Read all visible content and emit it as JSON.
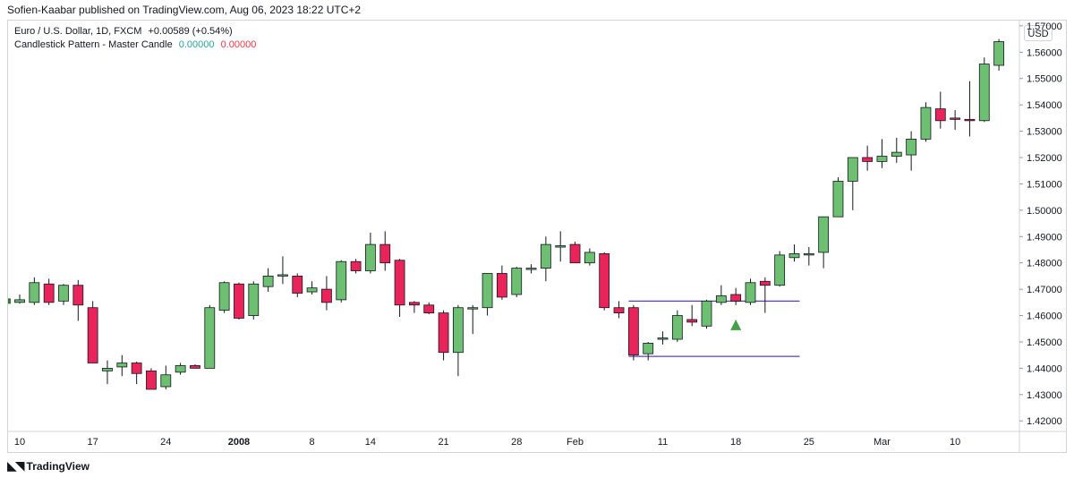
{
  "header": {
    "publisher": "Sofien-Kaabar published on TradingView.com, Aug 06, 2023 18:22 UTC+2",
    "symbol_line": "Euro / U.S. Dollar, 1D, FXCM",
    "change": "+0.00589 (+0.54%)",
    "indicator_name": "Candlestick Pattern - Master Candle",
    "indicator_value_1": "0.00000",
    "indicator_value_2": "0.00000",
    "currency": "USD"
  },
  "footer": {
    "brand": "TradingView",
    "brand_icon": "tradingview-logo-icon"
  },
  "colors": {
    "up": "#6dbf72",
    "down": "#e8245a",
    "wick": "#131722",
    "pattern_lines": "#5b3fc4",
    "signal": "#43a047",
    "grid": "#ffffff"
  },
  "chart_data": {
    "type": "candlestick",
    "title": "Euro / U.S. Dollar, 1D, FXCM",
    "ylim": [
      1.416,
      1.572
    ],
    "y_ticks": [
      "1.57000",
      "1.56000",
      "1.55000",
      "1.54000",
      "1.53000",
      "1.52000",
      "1.51000",
      "1.50000",
      "1.49000",
      "1.48000",
      "1.47000",
      "1.46000",
      "1.45000",
      "1.44000",
      "1.43000",
      "1.42000"
    ],
    "x_tick_labels": [
      {
        "label": "10",
        "index": 0
      },
      {
        "label": "17",
        "index": 5
      },
      {
        "label": "24",
        "index": 10
      },
      {
        "label": "2008",
        "index": 15,
        "bold": true
      },
      {
        "label": "8",
        "index": 20
      },
      {
        "label": "14",
        "index": 24
      },
      {
        "label": "21",
        "index": 29
      },
      {
        "label": "28",
        "index": 34
      },
      {
        "label": "Feb",
        "index": 38
      },
      {
        "label": "11",
        "index": 44
      },
      {
        "label": "18",
        "index": 49
      },
      {
        "label": "25",
        "index": 54
      },
      {
        "label": "Mar",
        "index": 59
      },
      {
        "label": "10",
        "index": 64
      }
    ],
    "candles": [
      {
        "o": 1.465,
        "h": 1.468,
        "l": 1.4645,
        "c": 1.466
      },
      {
        "o": 1.465,
        "h": 1.4745,
        "l": 1.464,
        "c": 1.4725
      },
      {
        "o": 1.472,
        "h": 1.474,
        "l": 1.464,
        "c": 1.465
      },
      {
        "o": 1.4655,
        "h": 1.472,
        "l": 1.464,
        "c": 1.4715
      },
      {
        "o": 1.4715,
        "h": 1.4735,
        "l": 1.458,
        "c": 1.464
      },
      {
        "o": 1.463,
        "h": 1.4655,
        "l": 1.442,
        "c": 1.442
      },
      {
        "o": 1.439,
        "h": 1.443,
        "l": 1.434,
        "c": 1.44
      },
      {
        "o": 1.4405,
        "h": 1.445,
        "l": 1.437,
        "c": 1.442
      },
      {
        "o": 1.442,
        "h": 1.4425,
        "l": 1.434,
        "c": 1.438
      },
      {
        "o": 1.439,
        "h": 1.44,
        "l": 1.432,
        "c": 1.432
      },
      {
        "o": 1.433,
        "h": 1.441,
        "l": 1.432,
        "c": 1.4375
      },
      {
        "o": 1.4385,
        "h": 1.442,
        "l": 1.4375,
        "c": 1.441
      },
      {
        "o": 1.441,
        "h": 1.4415,
        "l": 1.44,
        "c": 1.44
      },
      {
        "o": 1.44,
        "h": 1.464,
        "l": 1.44,
        "c": 1.463
      },
      {
        "o": 1.462,
        "h": 1.473,
        "l": 1.461,
        "c": 1.4725
      },
      {
        "o": 1.472,
        "h": 1.4725,
        "l": 1.4585,
        "c": 1.459
      },
      {
        "o": 1.46,
        "h": 1.473,
        "l": 1.4585,
        "c": 1.472
      },
      {
        "o": 1.471,
        "h": 1.478,
        "l": 1.469,
        "c": 1.475
      },
      {
        "o": 1.475,
        "h": 1.4825,
        "l": 1.472,
        "c": 1.4755
      },
      {
        "o": 1.475,
        "h": 1.476,
        "l": 1.467,
        "c": 1.4685
      },
      {
        "o": 1.469,
        "h": 1.473,
        "l": 1.468,
        "c": 1.4705
      },
      {
        "o": 1.47,
        "h": 1.475,
        "l": 1.462,
        "c": 1.465
      },
      {
        "o": 1.466,
        "h": 1.481,
        "l": 1.465,
        "c": 1.4805
      },
      {
        "o": 1.4805,
        "h": 1.4815,
        "l": 1.476,
        "c": 1.477
      },
      {
        "o": 1.477,
        "h": 1.4915,
        "l": 1.476,
        "c": 1.487
      },
      {
        "o": 1.487,
        "h": 1.492,
        "l": 1.477,
        "c": 1.48
      },
      {
        "o": 1.481,
        "h": 1.4815,
        "l": 1.4595,
        "c": 1.464
      },
      {
        "o": 1.465,
        "h": 1.4655,
        "l": 1.461,
        "c": 1.464
      },
      {
        "o": 1.464,
        "h": 1.465,
        "l": 1.4605,
        "c": 1.461
      },
      {
        "o": 1.461,
        "h": 1.462,
        "l": 1.443,
        "c": 1.446
      },
      {
        "o": 1.446,
        "h": 1.464,
        "l": 1.437,
        "c": 1.463
      },
      {
        "o": 1.463,
        "h": 1.464,
        "l": 1.453,
        "c": 1.463
      },
      {
        "o": 1.463,
        "h": 1.476,
        "l": 1.46,
        "c": 1.476
      },
      {
        "o": 1.476,
        "h": 1.479,
        "l": 1.466,
        "c": 1.467
      },
      {
        "o": 1.468,
        "h": 1.4785,
        "l": 1.467,
        "c": 1.478
      },
      {
        "o": 1.478,
        "h": 1.4795,
        "l": 1.476,
        "c": 1.478
      },
      {
        "o": 1.478,
        "h": 1.49,
        "l": 1.473,
        "c": 1.487
      },
      {
        "o": 1.4865,
        "h": 1.492,
        "l": 1.4805,
        "c": 1.4865
      },
      {
        "o": 1.487,
        "h": 1.488,
        "l": 1.48,
        "c": 1.48
      },
      {
        "o": 1.48,
        "h": 1.4855,
        "l": 1.479,
        "c": 1.484
      },
      {
        "o": 1.4835,
        "h": 1.484,
        "l": 1.462,
        "c": 1.463
      },
      {
        "o": 1.463,
        "h": 1.4655,
        "l": 1.459,
        "c": 1.461
      },
      {
        "o": 1.463,
        "h": 1.464,
        "l": 1.443,
        "c": 1.445
      },
      {
        "o": 1.4455,
        "h": 1.45,
        "l": 1.443,
        "c": 1.4495
      },
      {
        "o": 1.451,
        "h": 1.454,
        "l": 1.449,
        "c": 1.4515
      },
      {
        "o": 1.451,
        "h": 1.462,
        "l": 1.45,
        "c": 1.46
      },
      {
        "o": 1.4585,
        "h": 1.464,
        "l": 1.456,
        "c": 1.4575
      },
      {
        "o": 1.456,
        "h": 1.466,
        "l": 1.455,
        "c": 1.4655
      },
      {
        "o": 1.465,
        "h": 1.4715,
        "l": 1.464,
        "c": 1.4675
      },
      {
        "o": 1.468,
        "h": 1.4705,
        "l": 1.464,
        "c": 1.4655
      },
      {
        "o": 1.465,
        "h": 1.474,
        "l": 1.464,
        "c": 1.4725
      },
      {
        "o": 1.473,
        "h": 1.4745,
        "l": 1.461,
        "c": 1.4715
      },
      {
        "o": 1.4715,
        "h": 1.4845,
        "l": 1.471,
        "c": 1.483
      },
      {
        "o": 1.482,
        "h": 1.487,
        "l": 1.4805,
        "c": 1.4835
      },
      {
        "o": 1.4835,
        "h": 1.486,
        "l": 1.479,
        "c": 1.4835
      },
      {
        "o": 1.484,
        "h": 1.4975,
        "l": 1.478,
        "c": 1.4975
      },
      {
        "o": 1.4975,
        "h": 1.5125,
        "l": 1.4975,
        "c": 1.511
      },
      {
        "o": 1.511,
        "h": 1.52,
        "l": 1.5,
        "c": 1.52
      },
      {
        "o": 1.52,
        "h": 1.5245,
        "l": 1.515,
        "c": 1.5185
      },
      {
        "o": 1.5185,
        "h": 1.527,
        "l": 1.516,
        "c": 1.5205
      },
      {
        "o": 1.5205,
        "h": 1.5275,
        "l": 1.518,
        "c": 1.522
      },
      {
        "o": 1.521,
        "h": 1.53,
        "l": 1.515,
        "c": 1.527
      },
      {
        "o": 1.527,
        "h": 1.541,
        "l": 1.526,
        "c": 1.539
      },
      {
        "o": 1.5385,
        "h": 1.545,
        "l": 1.531,
        "c": 1.534
      },
      {
        "o": 1.535,
        "h": 1.538,
        "l": 1.5305,
        "c": 1.5345
      },
      {
        "o": 1.5345,
        "h": 1.549,
        "l": 1.528,
        "c": 1.534
      },
      {
        "o": 1.534,
        "h": 1.558,
        "l": 1.5335,
        "c": 1.5555
      },
      {
        "o": 1.555,
        "h": 1.565,
        "l": 1.553,
        "c": 1.564
      }
    ],
    "pattern": {
      "master_candle_index": 42,
      "upper_level": 1.4655,
      "lower_level": 1.4445,
      "line_start_index": 42,
      "line_end_index": 53,
      "signal_index": 49,
      "signal_price": 1.4565,
      "signal_direction": "up"
    }
  }
}
